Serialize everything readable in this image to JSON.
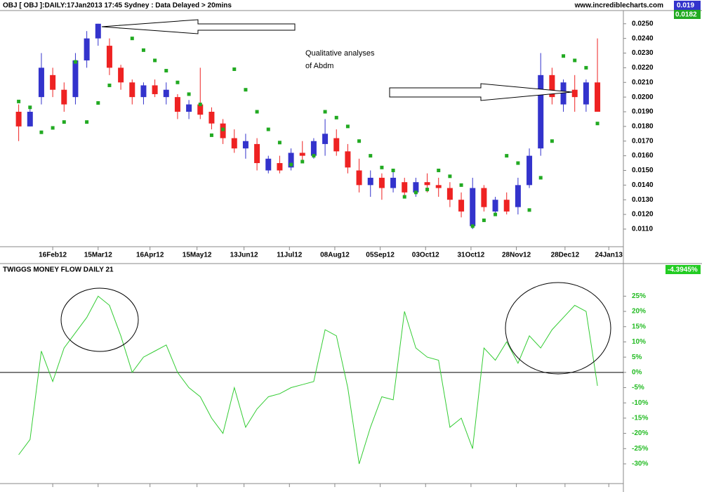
{
  "header": {
    "source": "www.incrediblecharts.com"
  },
  "annotation": {
    "lines": [
      "Qualitative analyses",
      "of Abdm"
    ]
  },
  "chart_data": [
    {
      "type": "ohlc",
      "title": "OBJ [ OBJ ]:DAILY:17Jan2013 17:45 Sydney : Data Delayed > 20mins",
      "x": [
        "2012-01-26",
        "2012-02-02",
        "2012-02-09",
        "2012-02-16",
        "2012-02-23",
        "2012-03-01",
        "2012-03-08",
        "2012-03-15",
        "2012-03-22",
        "2012-03-29",
        "2012-04-05",
        "2012-04-12",
        "2012-04-19",
        "2012-04-26",
        "2012-05-03",
        "2012-05-10",
        "2012-05-17",
        "2012-05-24",
        "2012-05-31",
        "2012-06-07",
        "2012-06-14",
        "2012-06-21",
        "2012-06-28",
        "2012-07-05",
        "2012-07-12",
        "2012-07-19",
        "2012-07-26",
        "2012-08-02",
        "2012-08-09",
        "2012-08-16",
        "2012-08-23",
        "2012-08-30",
        "2012-09-06",
        "2012-09-13",
        "2012-09-20",
        "2012-09-27",
        "2012-10-04",
        "2012-10-11",
        "2012-10-18",
        "2012-10-25",
        "2012-11-01",
        "2012-11-08",
        "2012-11-15",
        "2012-11-22",
        "2012-11-29",
        "2012-12-06",
        "2012-12-13",
        "2012-12-20",
        "2012-12-27",
        "2013-01-03",
        "2013-01-10",
        "2013-01-17"
      ],
      "open": [
        0.019,
        0.018,
        0.02,
        0.0215,
        0.0205,
        0.02,
        0.0225,
        0.024,
        0.0235,
        0.022,
        0.021,
        0.02,
        0.0208,
        0.02,
        0.02,
        0.019,
        0.0195,
        0.019,
        0.0182,
        0.0172,
        0.0165,
        0.0168,
        0.015,
        0.0155,
        0.0152,
        0.0162,
        0.016,
        0.0168,
        0.0172,
        0.0163,
        0.015,
        0.014,
        0.0145,
        0.0138,
        0.0142,
        0.0135,
        0.0142,
        0.014,
        0.0138,
        0.013,
        0.0112,
        0.0138,
        0.0122,
        0.013,
        0.0125,
        0.014,
        0.0165,
        0.0215,
        0.0195,
        0.0205,
        0.0195,
        0.021
      ],
      "high": [
        0.0195,
        0.0192,
        0.023,
        0.022,
        0.021,
        0.023,
        0.0245,
        0.025,
        0.024,
        0.0222,
        0.0212,
        0.021,
        0.0212,
        0.021,
        0.0202,
        0.0198,
        0.022,
        0.0193,
        0.0185,
        0.0178,
        0.0175,
        0.0172,
        0.016,
        0.016,
        0.0165,
        0.017,
        0.0172,
        0.0185,
        0.0178,
        0.0168,
        0.0158,
        0.015,
        0.0148,
        0.015,
        0.0145,
        0.0145,
        0.0148,
        0.0145,
        0.0142,
        0.0135,
        0.0145,
        0.014,
        0.0132,
        0.0135,
        0.0145,
        0.0165,
        0.023,
        0.022,
        0.0212,
        0.0215,
        0.0212,
        0.024
      ],
      "low": [
        0.017,
        0.018,
        0.0195,
        0.02,
        0.019,
        0.0195,
        0.022,
        0.0235,
        0.0215,
        0.0205,
        0.0195,
        0.0195,
        0.02,
        0.0195,
        0.0185,
        0.0185,
        0.0185,
        0.0178,
        0.0168,
        0.0162,
        0.0158,
        0.015,
        0.0148,
        0.0148,
        0.015,
        0.0155,
        0.0158,
        0.016,
        0.016,
        0.0148,
        0.0135,
        0.0132,
        0.013,
        0.0135,
        0.0132,
        0.0132,
        0.0135,
        0.0132,
        0.0125,
        0.0118,
        0.011,
        0.0122,
        0.012,
        0.012,
        0.012,
        0.0138,
        0.016,
        0.0195,
        0.019,
        0.019,
        0.019,
        0.019
      ],
      "close": [
        0.018,
        0.019,
        0.022,
        0.0205,
        0.0195,
        0.0225,
        0.024,
        0.025,
        0.022,
        0.021,
        0.02,
        0.0208,
        0.0202,
        0.0205,
        0.019,
        0.0195,
        0.0188,
        0.0182,
        0.0172,
        0.0165,
        0.017,
        0.0155,
        0.0158,
        0.015,
        0.0162,
        0.016,
        0.017,
        0.0175,
        0.0163,
        0.0152,
        0.014,
        0.0145,
        0.0138,
        0.0145,
        0.0135,
        0.0142,
        0.014,
        0.0138,
        0.013,
        0.0122,
        0.0138,
        0.0125,
        0.013,
        0.0122,
        0.014,
        0.016,
        0.0215,
        0.02,
        0.021,
        0.02,
        0.021,
        0.019
      ],
      "up_color": "#3333cc",
      "down_color": "#ee2222",
      "sar": {
        "color": "#22aa22",
        "values": [
          0.0197,
          0.0193,
          0.0176,
          0.0179,
          0.0183,
          0.0224,
          0.0183,
          0.0196,
          0.0208,
          0.0248,
          0.024,
          0.0232,
          0.0225,
          0.0218,
          0.021,
          0.0202,
          0.0195,
          0.0174,
          0.0178,
          0.0219,
          0.0205,
          0.019,
          0.0178,
          0.0169,
          0.0154,
          0.0156,
          0.016,
          0.019,
          0.0186,
          0.018,
          0.017,
          0.016,
          0.0152,
          0.015,
          0.0132,
          0.0135,
          0.0137,
          0.015,
          0.0146,
          0.014,
          0.0112,
          0.0116,
          0.012,
          0.016,
          0.0155,
          0.0123,
          0.0145,
          0.017,
          0.0228,
          0.0225,
          0.022,
          0.0182
        ]
      },
      "last_value": 0.019,
      "last_value_color": "#3333cc",
      "sar_value": 0.0182,
      "sar_value_color": "#22aa22",
      "xlim": [
        "2012-01-24",
        "2013-02-02"
      ],
      "xticks": [
        {
          "value": "2012-02-16",
          "label": "16Feb12"
        },
        {
          "value": "2012-03-15",
          "label": "15Mar12"
        },
        {
          "value": "2012-04-16",
          "label": "16Apr12"
        },
        {
          "value": "2012-05-15",
          "label": "15May12"
        },
        {
          "value": "2012-06-13",
          "label": "13Jun12"
        },
        {
          "value": "2012-07-11",
          "label": "11Jul12"
        },
        {
          "value": "2012-08-08",
          "label": "08Aug12"
        },
        {
          "value": "2012-09-05",
          "label": "05Sep12"
        },
        {
          "value": "2012-10-03",
          "label": "03Oct12"
        },
        {
          "value": "2012-10-31",
          "label": "31Oct12"
        },
        {
          "value": "2012-11-28",
          "label": "28Nov12"
        },
        {
          "value": "2012-12-28",
          "label": "28Dec12"
        },
        {
          "value": "2013-01-24",
          "label": "24Jan13"
        }
      ],
      "ylim": [
        0.0098,
        0.0259
      ],
      "yticks": [
        {
          "value": 0.025,
          "label": "0.0250"
        },
        {
          "value": 0.024,
          "label": "0.0240"
        },
        {
          "value": 0.023,
          "label": "0.0230"
        },
        {
          "value": 0.022,
          "label": "0.0220"
        },
        {
          "value": 0.021,
          "label": "0.0210"
        },
        {
          "value": 0.02,
          "label": "0.0200"
        },
        {
          "value": 0.019,
          "label": "0.0190"
        },
        {
          "value": 0.018,
          "label": "0.0180"
        },
        {
          "value": 0.017,
          "label": "0.0170"
        },
        {
          "value": 0.016,
          "label": "0.0160"
        },
        {
          "value": 0.015,
          "label": "0.0150"
        },
        {
          "value": 0.014,
          "label": "0.0140"
        },
        {
          "value": 0.013,
          "label": "0.0130"
        },
        {
          "value": 0.012,
          "label": "0.0120"
        },
        {
          "value": 0.011,
          "label": "0.0110"
        }
      ]
    },
    {
      "type": "line",
      "title": "TWIGGS MONEY FLOW DAILY 21",
      "color": "#33cc33",
      "x": [
        "2012-01-26",
        "2012-02-02",
        "2012-02-09",
        "2012-02-16",
        "2012-02-23",
        "2012-03-01",
        "2012-03-08",
        "2012-03-15",
        "2012-03-22",
        "2012-03-29",
        "2012-04-05",
        "2012-04-12",
        "2012-04-19",
        "2012-04-26",
        "2012-05-03",
        "2012-05-10",
        "2012-05-17",
        "2012-05-24",
        "2012-05-31",
        "2012-06-07",
        "2012-06-14",
        "2012-06-21",
        "2012-06-28",
        "2012-07-05",
        "2012-07-12",
        "2012-07-19",
        "2012-07-26",
        "2012-08-02",
        "2012-08-09",
        "2012-08-16",
        "2012-08-23",
        "2012-08-30",
        "2012-09-06",
        "2012-09-13",
        "2012-09-20",
        "2012-09-27",
        "2012-10-04",
        "2012-10-11",
        "2012-10-18",
        "2012-10-25",
        "2012-11-01",
        "2012-11-08",
        "2012-11-15",
        "2012-11-22",
        "2012-11-29",
        "2012-12-06",
        "2012-12-13",
        "2012-12-20",
        "2012-12-27",
        "2013-01-03",
        "2013-01-10",
        "2013-01-17"
      ],
      "values": [
        -27,
        -22,
        7,
        -3,
        8,
        13,
        18,
        25,
        22,
        12,
        0,
        5,
        7,
        9,
        0,
        -5,
        -8,
        -15,
        -20,
        -5,
        -18,
        -12,
        -8,
        -7,
        -5,
        -4,
        -3,
        14,
        12,
        -5,
        -30,
        -18,
        -8,
        -9,
        20,
        8,
        5,
        4,
        -18,
        -15,
        -25,
        8,
        4,
        10,
        3,
        12,
        8,
        14,
        18,
        22,
        20,
        -4.3945
      ],
      "last_value": {
        "value": -4.3945,
        "label": "-4.3945%"
      },
      "zero_line": true,
      "xlim": [
        "2012-01-24",
        "2013-02-02"
      ],
      "ylim": [
        -36,
        32
      ],
      "yticks": [
        {
          "value": 25,
          "label": "25%"
        },
        {
          "value": 20,
          "label": "20%"
        },
        {
          "value": 15,
          "label": "15%"
        },
        {
          "value": 10,
          "label": "10%"
        },
        {
          "value": 5,
          "label": "5%"
        },
        {
          "value": 0,
          "label": "0%"
        },
        {
          "value": -5,
          "label": "-5%"
        },
        {
          "value": -10,
          "label": "-10%"
        },
        {
          "value": -15,
          "label": "-15%"
        },
        {
          "value": -20,
          "label": "-20%"
        },
        {
          "value": -25,
          "label": "-25%"
        },
        {
          "value": -30,
          "label": "-30%"
        }
      ]
    }
  ]
}
